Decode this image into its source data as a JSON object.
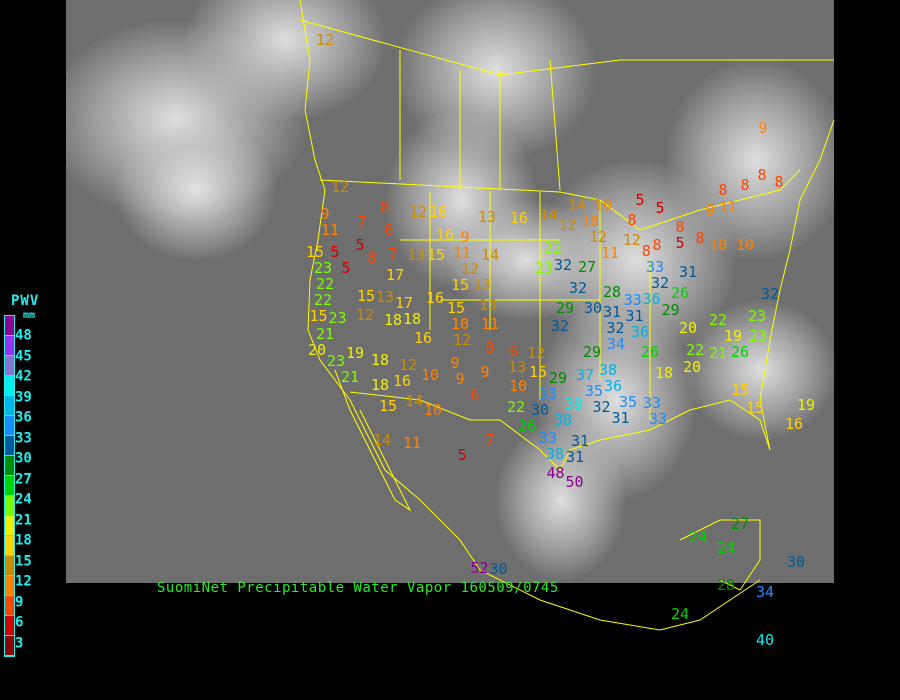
{
  "caption": "SuomiNet Precipitable Water Vapor 160509/0745",
  "legend": {
    "title": "PWV",
    "unit": "mm",
    "labels": [
      "48",
      "45",
      "42",
      "39",
      "36",
      "33",
      "30",
      "27",
      "24",
      "21",
      "18",
      "15",
      "12",
      "9",
      "6",
      "3"
    ],
    "colors": [
      "#8b0090",
      "#9a32f0",
      "#8a72d0",
      "#00eeee",
      "#00b4e6",
      "#1e8cff",
      "#005a9a",
      "#008c00",
      "#00d200",
      "#7cfc00",
      "#f0f000",
      "#ffd200",
      "#cd8c00",
      "#ff8200",
      "#ff4600",
      "#d20000",
      "#8b0000"
    ]
  },
  "stations": [
    12,
    9,
    12,
    9,
    11,
    7,
    8,
    6,
    12,
    16,
    13,
    16,
    14,
    14,
    10,
    10,
    5,
    5,
    8,
    9,
    11,
    8,
    8,
    8,
    8,
    16,
    9,
    12,
    12,
    12,
    8,
    8,
    5,
    8,
    10,
    10,
    15,
    5,
    5,
    8,
    7,
    13,
    15,
    11,
    14,
    22,
    32,
    27,
    23,
    11,
    8,
    33,
    31,
    23,
    5,
    17,
    12,
    15,
    13,
    22,
    15,
    13,
    32,
    28,
    33,
    32,
    36,
    26,
    29,
    32,
    22,
    17,
    16,
    15,
    13,
    29,
    30,
    31,
    31,
    15,
    23,
    12,
    18,
    18,
    10,
    11,
    32,
    32,
    36,
    20,
    22,
    19,
    23,
    23,
    21,
    16,
    12,
    8,
    34,
    29,
    26,
    22,
    21,
    26,
    20,
    19,
    18,
    12,
    9,
    9,
    6,
    12,
    13,
    15,
    29,
    37,
    38,
    18,
    20,
    23,
    21,
    18,
    16,
    10,
    9,
    10,
    33,
    35,
    36,
    15,
    15,
    14,
    10,
    6,
    22,
    30,
    39,
    32,
    35,
    33,
    15,
    19,
    26,
    38,
    31,
    33,
    16,
    14,
    11,
    33,
    31,
    5,
    7,
    38,
    31,
    48,
    50,
    24,
    27,
    24,
    30,
    52,
    30,
    28,
    34,
    24,
    40
  ]
}
